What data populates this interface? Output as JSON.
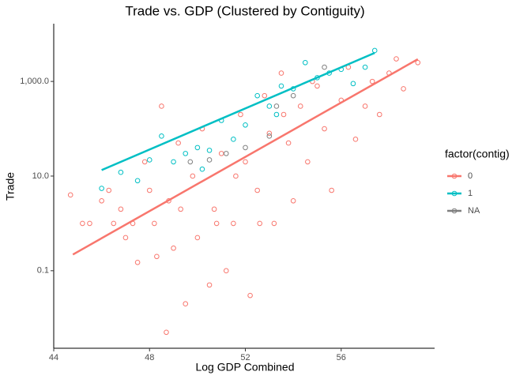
{
  "chart_data": {
    "type": "scatter",
    "title": "Trade vs. GDP (Clustered by Contiguity)",
    "x_label": "Log GDP Combined",
    "y_label": "Trade",
    "legend_title": "factor(contig)",
    "legend": "right",
    "xlim": [
      44,
      59.9
    ],
    "xticks": [
      44,
      48,
      52,
      56
    ],
    "ylim": [
      0.0023,
      16600
    ],
    "ylog": true,
    "yticks": [
      0.1,
      {
        "value": 10,
        "label": "10.0"
      },
      {
        "value": 1000,
        "label": "1,000.0"
      }
    ],
    "series": [
      {
        "name": "0",
        "color": "#F8766D",
        "x": [
          44.7,
          45.2,
          45.5,
          46,
          46.3,
          46.5,
          46.8,
          47,
          47.3,
          47.5,
          47.8,
          48,
          48.2,
          48.5,
          48.7,
          48.8,
          49,
          49.2,
          49.5,
          49.8,
          50,
          50.2,
          50.5,
          50.7,
          51,
          51.2,
          51.5,
          51.8,
          52,
          52.2,
          52.5,
          52.8,
          53,
          53.2,
          53.5,
          53.8,
          54,
          54.3,
          54.6,
          55,
          55.3,
          55.6,
          56,
          56.3,
          56.6,
          57,
          57.3,
          57.6,
          58,
          58.3,
          58.6,
          59.2,
          49.3,
          50.8,
          51.6,
          52.6,
          53.6,
          54.8,
          48.3
        ],
        "values": [
          4,
          1,
          1,
          3,
          5,
          1,
          2,
          0.5,
          1,
          0.15,
          20,
          5,
          1,
          300,
          0.005,
          3,
          0.3,
          50,
          0.02,
          10,
          0.5,
          100,
          0.05,
          2,
          30,
          0.1,
          1,
          200,
          20,
          0.03,
          5,
          500,
          80,
          1,
          1500,
          50,
          3,
          300,
          20,
          800,
          100,
          5,
          400,
          2000,
          60,
          300,
          1000,
          200,
          1500,
          3000,
          700,
          2500,
          2,
          1,
          10,
          1,
          200,
          1000,
          0.2
        ],
        "fit": {
          "x": [
            44.8,
            59.2
          ],
          "values": [
            0.22,
            2950
          ]
        }
      },
      {
        "name": "1",
        "color": "#00BFC4",
        "x": [
          46,
          46.8,
          47.5,
          48,
          48.5,
          49,
          49.5,
          50,
          50.5,
          51,
          51.5,
          52,
          52.5,
          53,
          53.5,
          54,
          54.5,
          55,
          55.5,
          56,
          56.5,
          57,
          57.4,
          53.3,
          50.2
        ],
        "values": [
          5.5,
          12,
          8,
          22,
          70,
          20,
          30,
          40,
          35,
          150,
          60,
          120,
          500,
          300,
          800,
          700,
          2500,
          1200,
          1500,
          1800,
          900,
          2000,
          4500,
          200,
          14
        ],
        "fit": {
          "x": [
            46,
            57.4
          ],
          "values": [
            13.4,
            4000
          ]
        }
      },
      {
        "name": "NA",
        "color": "#7F7F7F",
        "x": [
          49.7,
          50.5,
          51.2,
          52,
          53.3,
          54,
          55.3,
          53
        ],
        "values": [
          20,
          22,
          30,
          40,
          300,
          500,
          2000,
          70
        ]
      }
    ]
  }
}
